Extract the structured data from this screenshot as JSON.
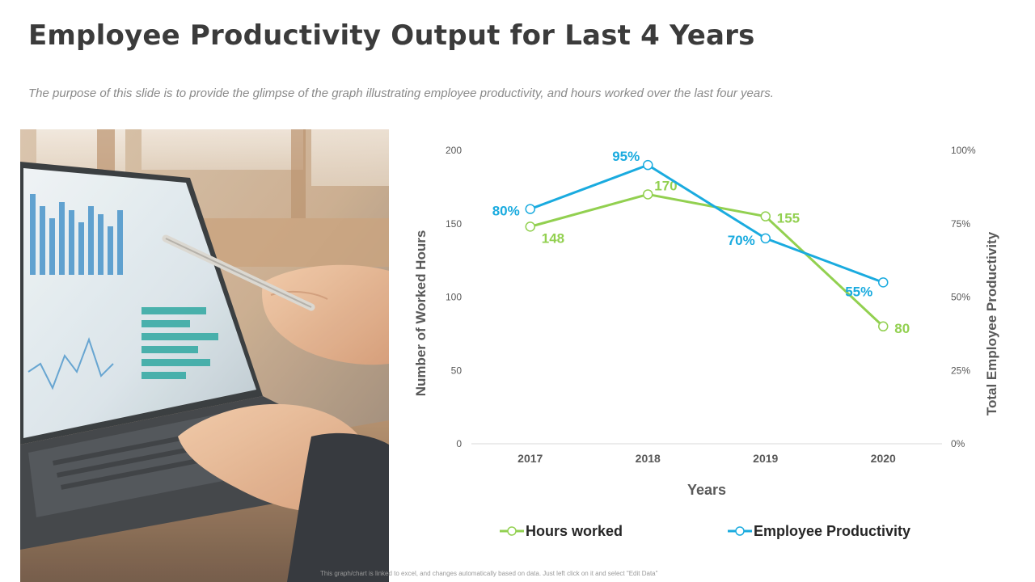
{
  "header": {
    "title": "Employee Productivity Output for Last 4 Years",
    "subtitle": "The purpose of this slide is to provide the glimpse of the graph illustrating employee productivity, and hours worked  over the last four years."
  },
  "footnote": "This graph/chart is linked to excel, and changes automatically based on data. Just left click on it and select \"Edit Data\"",
  "colors": {
    "hours": "#92d050",
    "productivity": "#1aabdf",
    "title": "#3b3b3b",
    "axis_text": "#595959"
  },
  "photo": {
    "icon": "laptop-analytics-photo"
  },
  "chart_data": {
    "type": "line",
    "categories": [
      "2017",
      "2018",
      "2019",
      "2020"
    ],
    "xlabel": "Years",
    "ylabel": "Number of Worked Hours",
    "y2label": "Total Employee Productivity",
    "ylim": [
      0,
      200
    ],
    "yticks": [
      "0",
      "50",
      "100",
      "150",
      "200"
    ],
    "y2lim": [
      0,
      100
    ],
    "y2ticks": [
      "0%",
      "25%",
      "50%",
      "75%",
      "100%"
    ],
    "grid": false,
    "legend_position": "bottom",
    "series": [
      {
        "name": "Hours worked",
        "axis": "left",
        "values": [
          148,
          170,
          155,
          80
        ],
        "labels": [
          "148",
          "170",
          "155",
          "80"
        ],
        "color": "#92d050"
      },
      {
        "name": "Employee Productivity",
        "axis": "right",
        "values": [
          80,
          95,
          70,
          55
        ],
        "labels": [
          "80%",
          "95%",
          "70%",
          "55%"
        ],
        "color": "#1aabdf"
      }
    ]
  }
}
